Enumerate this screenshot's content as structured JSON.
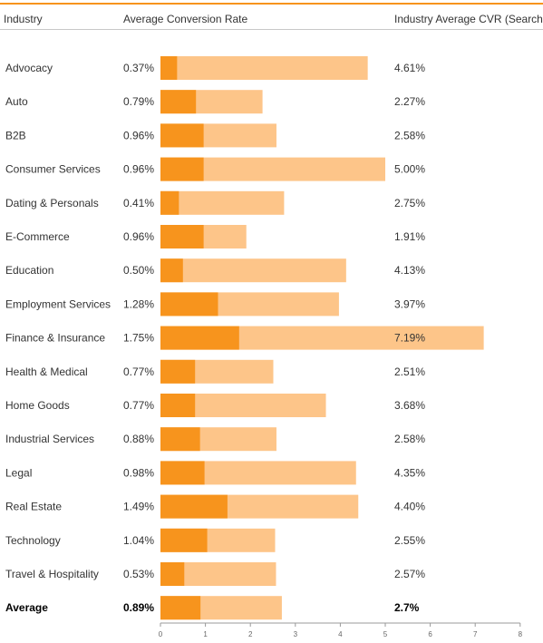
{
  "headers": {
    "industry": "Industry",
    "avg_rate": "Average Conversion Rate",
    "industry_avg": "Industry Average CVR (Search)"
  },
  "colors": {
    "accent": "#f7941d",
    "light": "#fdc589",
    "rule": "#f7941d",
    "text": "#333333"
  },
  "chart_data": {
    "type": "bar",
    "orientation": "horizontal",
    "categories": [
      "Advocacy",
      "Auto",
      "B2B",
      "Consumer Services",
      "Dating & Personals",
      "E-Commerce",
      "Education",
      "Employment Services",
      "Finance & Insurance",
      "Health & Medical",
      "Home Goods",
      "Industrial Services",
      "Legal",
      "Real Estate",
      "Technology",
      "Travel & Hospitality",
      "Average"
    ],
    "series": [
      {
        "values": [
          0.37,
          0.79,
          0.96,
          0.96,
          0.41,
          0.96,
          0.5,
          1.28,
          1.75,
          0.77,
          0.77,
          0.88,
          0.98,
          1.49,
          1.04,
          0.53,
          0.89
        ],
        "labels": [
          "0.37%",
          "0.79%",
          "0.96%",
          "0.96%",
          "0.41%",
          "0.96%",
          "0.50%",
          "1.28%",
          "1.75%",
          "0.77%",
          "0.77%",
          "0.88%",
          "0.98%",
          "1.49%",
          "1.04%",
          "0.53%",
          "0.89%"
        ]
      },
      {
        "values": [
          4.61,
          2.27,
          2.58,
          5.0,
          2.75,
          1.91,
          4.13,
          3.97,
          7.19,
          2.51,
          3.68,
          2.58,
          4.35,
          4.4,
          2.55,
          2.57,
          2.7
        ],
        "labels": [
          "4.61%",
          "2.27%",
          "2.58%",
          "5.00%",
          "2.75%",
          "1.91%",
          "4.13%",
          "3.97%",
          "7.19%",
          "2.51%",
          "3.68%",
          "2.58%",
          "4.35%",
          "4.40%",
          "2.55%",
          "2.57%",
          "2.7%"
        ]
      }
    ],
    "x_ticks": [
      "0",
      "1",
      "2",
      "3",
      "4",
      "5",
      "6",
      "7",
      "8"
    ],
    "xlim": [
      0,
      8
    ],
    "bold_category": "Average",
    "grid": false
  }
}
